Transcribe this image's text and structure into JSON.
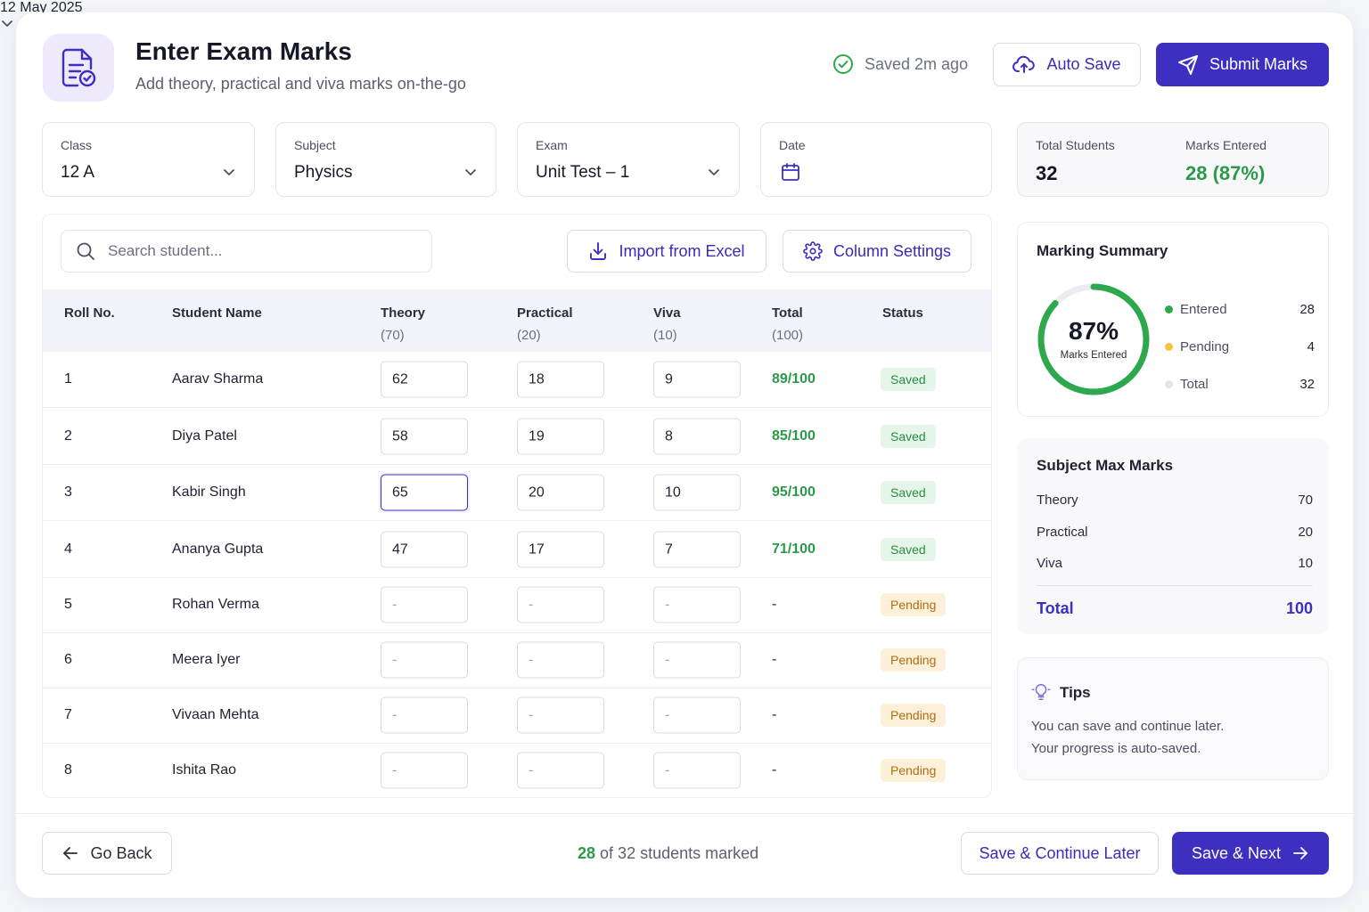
{
  "header": {
    "title": "Enter Exam Marks",
    "subtitle": "Add theory, practical and viva marks on-the-go",
    "saved_status": "Saved 2m ago",
    "auto_save_label": "Auto Save",
    "submit_label": "Submit Marks"
  },
  "filters": {
    "class": {
      "label": "Class",
      "value": "12 A"
    },
    "subject": {
      "label": "Subject",
      "value": "Physics"
    },
    "exam": {
      "label": "Exam",
      "value": "Unit Test – 1"
    },
    "date": {
      "label": "Date",
      "value": "12 May 2025"
    }
  },
  "stats": {
    "total_students_label": "Total Students",
    "total_students": "32",
    "marks_entered_label": "Marks Entered",
    "marks_entered": "28 (87%)"
  },
  "toolbar": {
    "search_placeholder": "Search student...",
    "import_label": "Import from Excel",
    "column_settings_label": "Column Settings"
  },
  "table": {
    "columns": [
      {
        "label": "Roll No.",
        "sub": ""
      },
      {
        "label": "Student Name",
        "sub": ""
      },
      {
        "label": "Theory",
        "sub": "(70)"
      },
      {
        "label": "Practical",
        "sub": "(20)"
      },
      {
        "label": "Viva",
        "sub": "(10)"
      },
      {
        "label": "Total",
        "sub": "(100)"
      },
      {
        "label": "Status",
        "sub": ""
      }
    ],
    "rows": [
      {
        "roll": "1",
        "name": "Aarav Sharma",
        "theory": "62",
        "practical": "18",
        "viva": "9",
        "total": "89/100",
        "status": "Saved"
      },
      {
        "roll": "2",
        "name": "Diya Patel",
        "theory": "58",
        "practical": "19",
        "viva": "8",
        "total": "85/100",
        "status": "Saved"
      },
      {
        "roll": "3",
        "name": "Kabir Singh",
        "theory": "65",
        "practical": "20",
        "viva": "10",
        "total": "95/100",
        "status": "Saved"
      },
      {
        "roll": "4",
        "name": "Ananya Gupta",
        "theory": "47",
        "practical": "17",
        "viva": "7",
        "total": "71/100",
        "status": "Saved"
      },
      {
        "roll": "5",
        "name": "Rohan Verma",
        "theory": "-",
        "practical": "-",
        "viva": "-",
        "total": "-",
        "status": "Pending"
      },
      {
        "roll": "6",
        "name": "Meera Iyer",
        "theory": "-",
        "practical": "-",
        "viva": "-",
        "total": "-",
        "status": "Pending"
      },
      {
        "roll": "7",
        "name": "Vivaan Mehta",
        "theory": "-",
        "practical": "-",
        "viva": "-",
        "total": "-",
        "status": "Pending"
      },
      {
        "roll": "8",
        "name": "Ishita Rao",
        "theory": "-",
        "practical": "-",
        "viva": "-",
        "total": "-",
        "status": "Pending"
      }
    ]
  },
  "summary": {
    "title": "Marking Summary",
    "percent_label": "87%",
    "percent_value": 0.87,
    "caption": "Marks Entered",
    "legend": [
      {
        "label": "Entered",
        "value": "28",
        "color": "#2ea84c"
      },
      {
        "label": "Pending",
        "value": "4",
        "color": "#f5c542"
      },
      {
        "label": "Total",
        "value": "32",
        "color": "#e3e4ea"
      }
    ]
  },
  "max_marks": {
    "title": "Subject Max Marks",
    "items": [
      {
        "label": "Theory",
        "value": "70"
      },
      {
        "label": "Practical",
        "value": "20"
      },
      {
        "label": "Viva",
        "value": "10"
      }
    ],
    "total_label": "Total",
    "total_value": "100"
  },
  "tips": {
    "title": "Tips",
    "line1": "You can save and continue later.",
    "line2": "Your progress is auto-saved."
  },
  "footer": {
    "back_label": "Go Back",
    "marked_count": "28",
    "marked_text": "of 32 students marked",
    "save_later_label": "Save & Continue Later",
    "save_next_label": "Save & Next"
  },
  "colors": {
    "accent": "#3d2fc0",
    "success": "#2b9a48",
    "pending": "#b06d12"
  }
}
